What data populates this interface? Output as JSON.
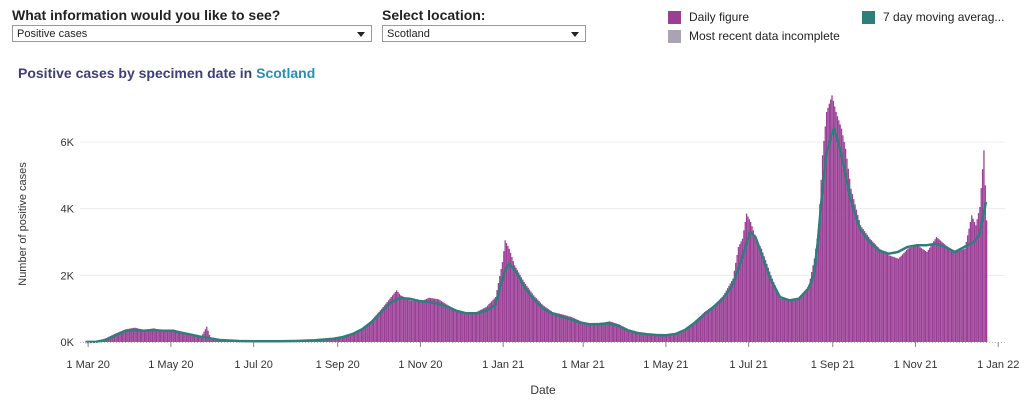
{
  "controls": {
    "info_label": "What information would you like to see?",
    "info_value": "Positive cases",
    "location_label": "Select location:",
    "location_value": "Scotland"
  },
  "legend": {
    "daily": "Daily figure",
    "incomplete": "Most recent data incomplete",
    "moving_avg": "7 day moving averag..."
  },
  "colors": {
    "daily": "#9b3f96",
    "incomplete": "#aaa3b4",
    "moving_avg": "#2e7f7b"
  },
  "title": {
    "prefix": "Positive cases by specimen date in",
    "location": "Scotland"
  },
  "chart_data": {
    "type": "bar",
    "title": "Positive cases by specimen date in Scotland",
    "xlabel": "Date",
    "ylabel": "Number of positive cases",
    "ylim": [
      0,
      7800
    ],
    "y_ticks": [
      {
        "value": 0,
        "label": "0K"
      },
      {
        "value": 2000,
        "label": "2K"
      },
      {
        "value": 4000,
        "label": "4K"
      },
      {
        "value": 6000,
        "label": "6K"
      }
    ],
    "x_ticks": [
      {
        "date": "2020-03-01",
        "label": "1 Mar 20"
      },
      {
        "date": "2020-05-01",
        "label": "1 May 20"
      },
      {
        "date": "2020-07-01",
        "label": "1 Jul 20"
      },
      {
        "date": "2020-09-01",
        "label": "1 Sep 20"
      },
      {
        "date": "2020-11-01",
        "label": "1 Nov 20"
      },
      {
        "date": "2021-01-01",
        "label": "1 Jan 21"
      },
      {
        "date": "2021-03-01",
        "label": "1 Mar 21"
      },
      {
        "date": "2021-05-01",
        "label": "1 May 21"
      },
      {
        "date": "2021-07-01",
        "label": "1 Jul 21"
      },
      {
        "date": "2021-09-01",
        "label": "1 Sep 21"
      },
      {
        "date": "2021-11-01",
        "label": "1 Nov 21"
      },
      {
        "date": "2022-01-01",
        "label": "1 Jan 22"
      }
    ],
    "x_range": [
      "2020-02-24",
      "2022-01-06"
    ],
    "series": [
      {
        "name": "Daily figure",
        "points": [
          [
            "2020-02-28",
            0
          ],
          [
            "2020-03-07",
            20
          ],
          [
            "2020-03-14",
            120
          ],
          [
            "2020-03-21",
            260
          ],
          [
            "2020-03-28",
            380
          ],
          [
            "2020-04-04",
            430
          ],
          [
            "2020-04-11",
            360
          ],
          [
            "2020-04-18",
            410
          ],
          [
            "2020-04-25",
            340
          ],
          [
            "2020-05-02",
            380
          ],
          [
            "2020-05-09",
            300
          ],
          [
            "2020-05-16",
            250
          ],
          [
            "2020-05-23",
            160
          ],
          [
            "2020-05-27",
            460
          ],
          [
            "2020-05-30",
            90
          ],
          [
            "2020-06-06",
            60
          ],
          [
            "2020-06-20",
            40
          ],
          [
            "2020-07-04",
            20
          ],
          [
            "2020-07-18",
            20
          ],
          [
            "2020-08-01",
            40
          ],
          [
            "2020-08-15",
            60
          ],
          [
            "2020-08-29",
            110
          ],
          [
            "2020-09-05",
            170
          ],
          [
            "2020-09-12",
            260
          ],
          [
            "2020-09-19",
            420
          ],
          [
            "2020-09-26",
            660
          ],
          [
            "2020-10-03",
            1000
          ],
          [
            "2020-10-10",
            1350
          ],
          [
            "2020-10-14",
            1550
          ],
          [
            "2020-10-17",
            1400
          ],
          [
            "2020-10-24",
            1250
          ],
          [
            "2020-10-31",
            1200
          ],
          [
            "2020-11-07",
            1330
          ],
          [
            "2020-11-14",
            1280
          ],
          [
            "2020-11-21",
            1100
          ],
          [
            "2020-11-28",
            950
          ],
          [
            "2020-12-05",
            880
          ],
          [
            "2020-12-12",
            900
          ],
          [
            "2020-12-19",
            1050
          ],
          [
            "2020-12-26",
            1350
          ],
          [
            "2020-12-31",
            2400
          ],
          [
            "2021-01-02",
            3050
          ],
          [
            "2021-01-05",
            2800
          ],
          [
            "2021-01-09",
            2300
          ],
          [
            "2021-01-16",
            1800
          ],
          [
            "2021-01-23",
            1400
          ],
          [
            "2021-01-30",
            1100
          ],
          [
            "2021-02-06",
            900
          ],
          [
            "2021-02-13",
            830
          ],
          [
            "2021-02-20",
            750
          ],
          [
            "2021-02-27",
            620
          ],
          [
            "2021-03-06",
            560
          ],
          [
            "2021-03-13",
            560
          ],
          [
            "2021-03-20",
            620
          ],
          [
            "2021-03-27",
            530
          ],
          [
            "2021-04-03",
            380
          ],
          [
            "2021-04-10",
            300
          ],
          [
            "2021-04-17",
            250
          ],
          [
            "2021-04-24",
            230
          ],
          [
            "2021-05-01",
            210
          ],
          [
            "2021-05-08",
            260
          ],
          [
            "2021-05-15",
            400
          ],
          [
            "2021-05-22",
            620
          ],
          [
            "2021-05-29",
            900
          ],
          [
            "2021-06-05",
            1100
          ],
          [
            "2021-06-12",
            1400
          ],
          [
            "2021-06-19",
            1900
          ],
          [
            "2021-06-23",
            2850
          ],
          [
            "2021-06-26",
            3100
          ],
          [
            "2021-06-29",
            3850
          ],
          [
            "2021-07-02",
            3600
          ],
          [
            "2021-07-06",
            3100
          ],
          [
            "2021-07-10",
            2800
          ],
          [
            "2021-07-17",
            2000
          ],
          [
            "2021-07-24",
            1300
          ],
          [
            "2021-07-31",
            1250
          ],
          [
            "2021-08-07",
            1300
          ],
          [
            "2021-08-14",
            1700
          ],
          [
            "2021-08-18",
            2500
          ],
          [
            "2021-08-21",
            3400
          ],
          [
            "2021-08-24",
            5600
          ],
          [
            "2021-08-27",
            6900
          ],
          [
            "2021-08-31",
            7400
          ],
          [
            "2021-09-03",
            6900
          ],
          [
            "2021-09-07",
            6400
          ],
          [
            "2021-09-10",
            5800
          ],
          [
            "2021-09-14",
            4600
          ],
          [
            "2021-09-21",
            3500
          ],
          [
            "2021-09-28",
            3100
          ],
          [
            "2021-10-05",
            2800
          ],
          [
            "2021-10-12",
            2600
          ],
          [
            "2021-10-19",
            2500
          ],
          [
            "2021-10-26",
            2800
          ],
          [
            "2021-11-02",
            2900
          ],
          [
            "2021-11-09",
            2700
          ],
          [
            "2021-11-16",
            3150
          ],
          [
            "2021-11-23",
            2900
          ],
          [
            "2021-11-30",
            2700
          ],
          [
            "2021-12-07",
            2800
          ],
          [
            "2021-12-12",
            3800
          ],
          [
            "2021-12-15",
            3500
          ],
          [
            "2021-12-18",
            4050
          ],
          [
            "2021-12-21",
            5750
          ],
          [
            "2021-12-23",
            3650
          ]
        ]
      },
      {
        "name": "7 day moving averag...",
        "points": [
          [
            "2020-02-28",
            0
          ],
          [
            "2020-03-07",
            10
          ],
          [
            "2020-03-14",
            60
          ],
          [
            "2020-03-21",
            200
          ],
          [
            "2020-03-28",
            320
          ],
          [
            "2020-04-04",
            360
          ],
          [
            "2020-04-11",
            340
          ],
          [
            "2020-04-18",
            360
          ],
          [
            "2020-04-25",
            340
          ],
          [
            "2020-05-02",
            340
          ],
          [
            "2020-05-09",
            280
          ],
          [
            "2020-05-16",
            220
          ],
          [
            "2020-05-23",
            160
          ],
          [
            "2020-05-30",
            110
          ],
          [
            "2020-06-06",
            60
          ],
          [
            "2020-06-20",
            30
          ],
          [
            "2020-07-04",
            20
          ],
          [
            "2020-07-18",
            20
          ],
          [
            "2020-08-01",
            30
          ],
          [
            "2020-08-15",
            50
          ],
          [
            "2020-08-29",
            100
          ],
          [
            "2020-09-05",
            150
          ],
          [
            "2020-09-12",
            240
          ],
          [
            "2020-09-19",
            380
          ],
          [
            "2020-09-26",
            600
          ],
          [
            "2020-10-03",
            900
          ],
          [
            "2020-10-10",
            1180
          ],
          [
            "2020-10-17",
            1320
          ],
          [
            "2020-10-24",
            1300
          ],
          [
            "2020-10-31",
            1230
          ],
          [
            "2020-11-07",
            1200
          ],
          [
            "2020-11-14",
            1150
          ],
          [
            "2020-11-21",
            1050
          ],
          [
            "2020-11-28",
            930
          ],
          [
            "2020-12-05",
            860
          ],
          [
            "2020-12-12",
            860
          ],
          [
            "2020-12-19",
            930
          ],
          [
            "2020-12-26",
            1100
          ],
          [
            "2021-01-02",
            2100
          ],
          [
            "2021-01-05",
            2350
          ],
          [
            "2021-01-09",
            2200
          ],
          [
            "2021-01-16",
            1700
          ],
          [
            "2021-01-23",
            1300
          ],
          [
            "2021-01-30",
            1020
          ],
          [
            "2021-02-06",
            860
          ],
          [
            "2021-02-13",
            760
          ],
          [
            "2021-02-20",
            680
          ],
          [
            "2021-02-27",
            580
          ],
          [
            "2021-03-06",
            530
          ],
          [
            "2021-03-13",
            540
          ],
          [
            "2021-03-20",
            560
          ],
          [
            "2021-03-27",
            480
          ],
          [
            "2021-04-03",
            350
          ],
          [
            "2021-04-10",
            270
          ],
          [
            "2021-04-17",
            230
          ],
          [
            "2021-04-24",
            210
          ],
          [
            "2021-05-01",
            200
          ],
          [
            "2021-05-08",
            240
          ],
          [
            "2021-05-15",
            360
          ],
          [
            "2021-05-22",
            570
          ],
          [
            "2021-05-29",
            820
          ],
          [
            "2021-06-05",
            1050
          ],
          [
            "2021-06-12",
            1300
          ],
          [
            "2021-06-19",
            1700
          ],
          [
            "2021-06-26",
            2500
          ],
          [
            "2021-07-02",
            3300
          ],
          [
            "2021-07-06",
            3150
          ],
          [
            "2021-07-10",
            2700
          ],
          [
            "2021-07-17",
            1900
          ],
          [
            "2021-07-24",
            1350
          ],
          [
            "2021-07-31",
            1250
          ],
          [
            "2021-08-07",
            1300
          ],
          [
            "2021-08-14",
            1600
          ],
          [
            "2021-08-18",
            2000
          ],
          [
            "2021-08-21",
            3000
          ],
          [
            "2021-08-24",
            4400
          ],
          [
            "2021-08-27",
            5600
          ],
          [
            "2021-08-31",
            6200
          ],
          [
            "2021-09-02",
            6400
          ],
          [
            "2021-09-07",
            5700
          ],
          [
            "2021-09-14",
            4300
          ],
          [
            "2021-09-21",
            3400
          ],
          [
            "2021-09-28",
            3000
          ],
          [
            "2021-10-05",
            2750
          ],
          [
            "2021-10-12",
            2650
          ],
          [
            "2021-10-19",
            2700
          ],
          [
            "2021-10-26",
            2850
          ],
          [
            "2021-11-02",
            2900
          ],
          [
            "2021-11-09",
            2900
          ],
          [
            "2021-11-16",
            2950
          ],
          [
            "2021-11-23",
            2850
          ],
          [
            "2021-11-30",
            2700
          ],
          [
            "2021-12-07",
            2850
          ],
          [
            "2021-12-14",
            3000
          ],
          [
            "2021-12-18",
            3200
          ],
          [
            "2021-12-21",
            3800
          ],
          [
            "2021-12-23",
            4200
          ]
        ]
      }
    ]
  }
}
